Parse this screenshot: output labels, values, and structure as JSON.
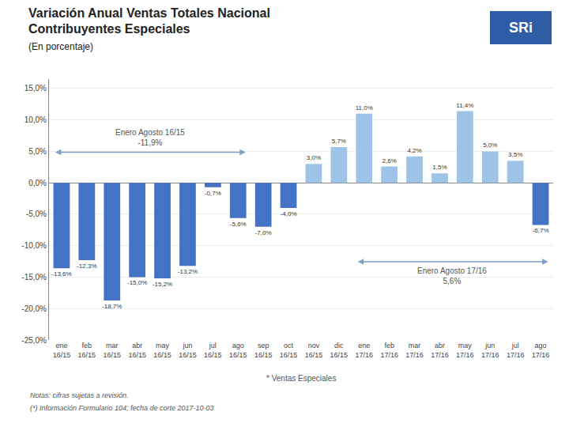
{
  "chart_data": {
    "type": "bar",
    "title": "Variación Anual Ventas Totales Nacional\nContribuyentes Especiales",
    "subtitle": "(En porcentaje)",
    "categories": [
      "ene\n16/15",
      "feb\n16/15",
      "mar\n16/15",
      "abr\n16/15",
      "may\n16/15",
      "jun\n16/15",
      "jul\n16/15",
      "ago\n16/15",
      "sep\n16/15",
      "oct\n16/15",
      "nov\n16/15",
      "dic\n16/15",
      "ene\n17/16",
      "feb\n17/16",
      "mar\n17/16",
      "abr\n17/16",
      "may\n17/16",
      "jun\n17/16",
      "jul\n17/16",
      "ago\n17/16"
    ],
    "values": [
      -13.6,
      -12.3,
      -18.7,
      -15.0,
      -15.2,
      -13.2,
      -0.7,
      -5.6,
      -7.0,
      -4.0,
      3.0,
      5.7,
      11.0,
      2.6,
      4.2,
      1.5,
      11.4,
      5.0,
      3.5,
      -6.7
    ],
    "value_labels": [
      "-13,6%",
      "-12,3%",
      "-18,7%",
      "-15,0%",
      "-15,2%",
      "-13,2%",
      "-0,7%",
      "-5,6%",
      "-7,0%",
      "-4,0%",
      "3,0%",
      "5,7%",
      "11,0%",
      "2,6%",
      "4,2%",
      "1,5%",
      "11,4%",
      "5,0%",
      "3,5%",
      "-6,7%"
    ],
    "data_labels": true,
    "colors": [
      "#4472C4",
      "#4472C4",
      "#4472C4",
      "#4472C4",
      "#4472C4",
      "#4472C4",
      "#4472C4",
      "#4472C4",
      "#4472C4",
      "#4472C4",
      "#9DC3E6",
      "#9DC3E6",
      "#9DC3E6",
      "#9DC3E6",
      "#9DC3E6",
      "#9DC3E6",
      "#9DC3E6",
      "#9DC3E6",
      "#9DC3E6",
      "#4472C4"
    ],
    "ylim": [
      -25,
      16.5
    ],
    "yticks": [
      {
        "value": -25,
        "label": "-25,0%"
      },
      {
        "value": -20,
        "label": "-20,0%"
      },
      {
        "value": -15,
        "label": "-15,0%"
      },
      {
        "value": -10,
        "label": "-10,0%"
      },
      {
        "value": -5,
        "label": "-5,0%"
      },
      {
        "value": 0,
        "label": "0,0%"
      },
      {
        "value": 5,
        "label": "5,0%"
      },
      {
        "value": 10,
        "label": "10,0%"
      },
      {
        "value": 15,
        "label": "15,0%"
      }
    ],
    "grid": true,
    "annotations": [
      {
        "text": "Enero Agosto 16/15",
        "value": -11.9,
        "value_label": "-11,9%",
        "from": "ene\n16/15",
        "to": "ago\n16/15",
        "color": "#7F9EC4"
      },
      {
        "text": "Enero Agosto 17/16",
        "value": 5.6,
        "value_label": "5,6%",
        "from": "ene\n17/16",
        "to": "ago\n17/16",
        "color": "#7F9EC4"
      }
    ],
    "caption": "* Ventas Especiales",
    "notes": [
      "Notas: cifras sujetas a revisión.",
      "(*) Información Formulario 104; fecha de corte 2017-10-03"
    ],
    "logo": {
      "text": "SRi",
      "color": "#2E5DA6"
    }
  }
}
